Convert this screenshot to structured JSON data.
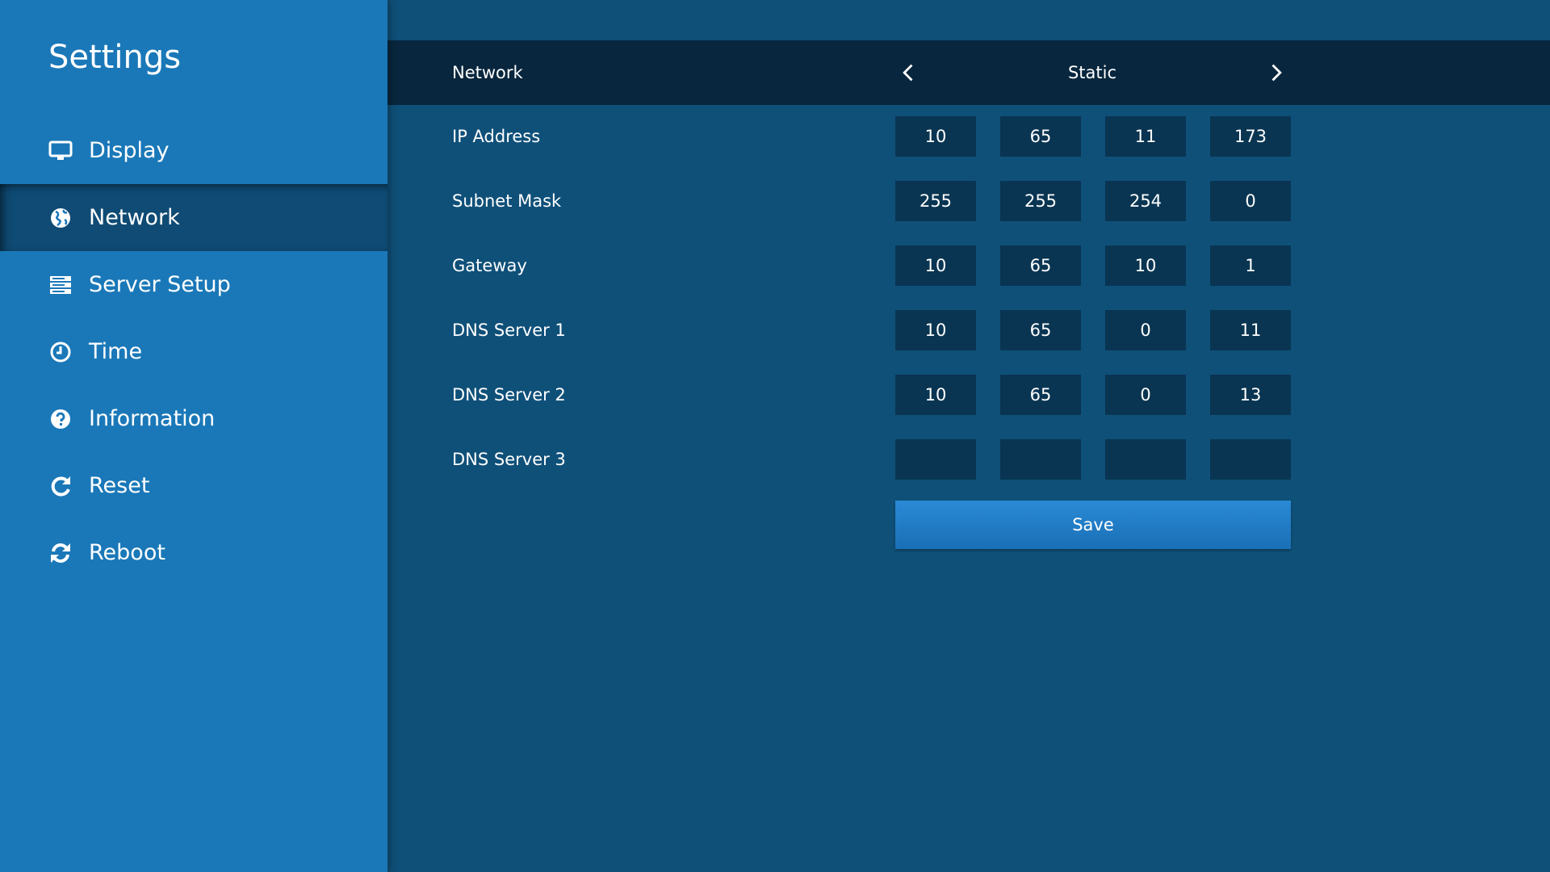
{
  "sidebar": {
    "title": "Settings",
    "items": [
      {
        "label": "Display",
        "icon": "monitor-icon"
      },
      {
        "label": "Network",
        "icon": "globe-icon",
        "active": true
      },
      {
        "label": "Server Setup",
        "icon": "server-icon"
      },
      {
        "label": "Time",
        "icon": "clock-icon"
      },
      {
        "label": "Information",
        "icon": "question-circle-icon"
      },
      {
        "label": "Reset",
        "icon": "redo-icon"
      },
      {
        "label": "Reboot",
        "icon": "refresh-icon"
      }
    ]
  },
  "header": {
    "label": "Network",
    "mode": "Static"
  },
  "rows": [
    {
      "label": "IP Address",
      "values": [
        "10",
        "65",
        "11",
        "173"
      ]
    },
    {
      "label": "Subnet Mask",
      "values": [
        "255",
        "255",
        "254",
        "0"
      ]
    },
    {
      "label": "Gateway",
      "values": [
        "10",
        "65",
        "10",
        "1"
      ]
    },
    {
      "label": "DNS Server 1",
      "values": [
        "10",
        "65",
        "0",
        "11"
      ]
    },
    {
      "label": "DNS Server 2",
      "values": [
        "10",
        "65",
        "0",
        "13"
      ]
    },
    {
      "label": "DNS Server 3",
      "values": [
        "",
        "",
        "",
        ""
      ]
    }
  ],
  "save_label": "Save",
  "colors": {
    "sidebar": "#1a78b8",
    "main": "#0f5079",
    "header": "#08263d",
    "input": "#093552",
    "accent": "#2a8ad6"
  }
}
